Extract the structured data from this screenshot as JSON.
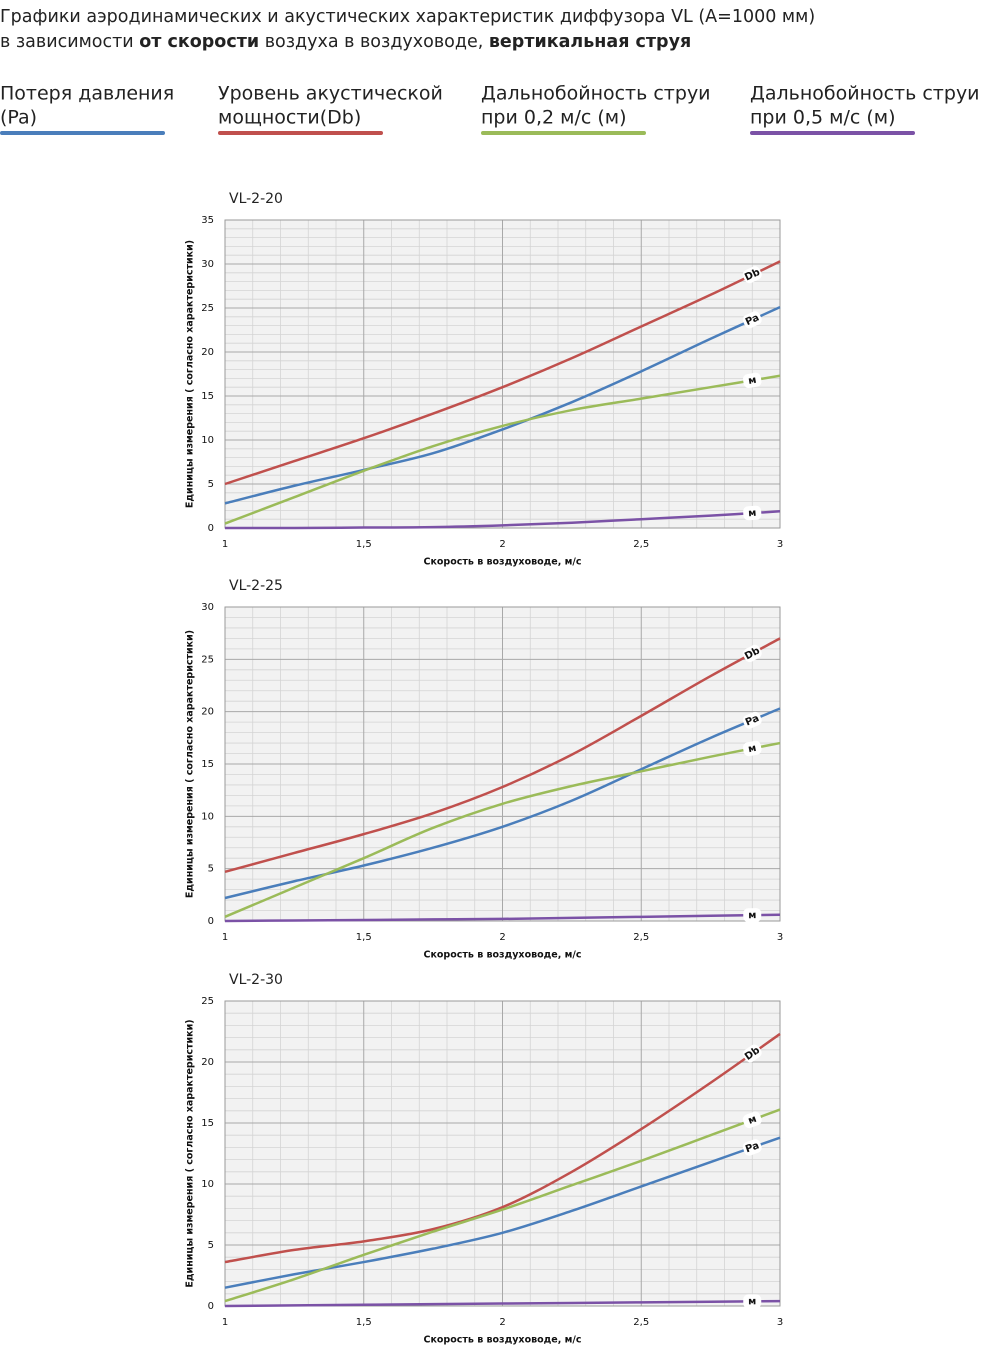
{
  "header": {
    "line1": "Графики аэродинамических и акустических характеристик  диффузора VL (А=1000 мм)",
    "line2": [
      {
        "text": "в зависимости ",
        "bold": false
      },
      {
        "text": "от скорости",
        "bold": true
      },
      {
        "text": " воздуха в воздуховоде, ",
        "bold": false
      },
      {
        "text": "вертикальная струя",
        "bold": true
      }
    ]
  },
  "legend": [
    {
      "lines": [
        "Потеря давления",
        "(Pa)"
      ],
      "color": "#4a7ebb"
    },
    {
      "lines": [
        "Уровень акустической",
        "мощности(Db)"
      ],
      "color": "#c0504d"
    },
    {
      "lines": [
        "Дальнобойность струи",
        "при 0,2 м/с (м)"
      ],
      "color": "#9bbb59"
    },
    {
      "lines": [
        "Дальнобойность струи",
        "при 0,5 м/с (м)"
      ],
      "color": "#7b52a6"
    }
  ],
  "chart_data": [
    {
      "type": "line",
      "title": "VL-2-20",
      "x_label": "Скорость в воздуховоде, м/с",
      "y_label": "Единицы измерения ( согласно характеристики)",
      "x": [
        1,
        1.25,
        1.5,
        1.75,
        2,
        2.25,
        2.5,
        2.75,
        3
      ],
      "xlim": [
        1,
        3
      ],
      "xticks": [
        1,
        {
          "value": 1.5,
          "label": "1,5"
        },
        2,
        {
          "value": 2.5,
          "label": "2,5"
        },
        3
      ],
      "ylim": [
        0,
        35
      ],
      "yticks": [
        0,
        5,
        10,
        15,
        20,
        25,
        30,
        35
      ],
      "grid": true,
      "series": [
        {
          "name": "Db",
          "color": "#c0504d",
          "values": [
            5,
            7.6,
            10.2,
            13,
            16,
            19.3,
            22.9,
            26.5,
            30.3
          ]
        },
        {
          "name": "Pa",
          "color": "#4a7ebb",
          "values": [
            2.8,
            4.8,
            6.6,
            8.5,
            11.2,
            14.3,
            17.8,
            21.5,
            25.1
          ]
        },
        {
          "name": "м",
          "color": "#9bbb59",
          "values": [
            0.5,
            3.5,
            6.5,
            9.3,
            11.6,
            13.4,
            14.7,
            16,
            17.3
          ]
        },
        {
          "name": "м",
          "color": "#7b52a6",
          "values": [
            0,
            0,
            0.05,
            0.1,
            0.3,
            0.6,
            1,
            1.4,
            1.9
          ]
        }
      ]
    },
    {
      "type": "line",
      "title": "VL-2-25",
      "x_label": "Скорость в воздуховоде, м/с",
      "y_label": "Единицы измерения ( согласно характеристики)",
      "x": [
        1,
        1.25,
        1.5,
        1.75,
        2,
        2.25,
        2.5,
        2.75,
        3
      ],
      "xlim": [
        1,
        3
      ],
      "xticks": [
        1,
        {
          "value": 1.5,
          "label": "1,5"
        },
        2,
        {
          "value": 2.5,
          "label": "2,5"
        },
        3
      ],
      "ylim": [
        0,
        30
      ],
      "yticks": [
        0,
        5,
        10,
        15,
        20,
        25,
        30
      ],
      "grid": true,
      "series": [
        {
          "name": "Db",
          "color": "#c0504d",
          "values": [
            4.7,
            6.5,
            8.3,
            10.3,
            12.8,
            15.9,
            19.6,
            23.4,
            27
          ]
        },
        {
          "name": "Pa",
          "color": "#4a7ebb",
          "values": [
            2.2,
            3.8,
            5.3,
            7,
            9,
            11.5,
            14.5,
            17.5,
            20.3
          ]
        },
        {
          "name": "м",
          "color": "#9bbb59",
          "values": [
            0.4,
            3.2,
            6,
            8.9,
            11.2,
            12.9,
            14.3,
            15.7,
            17
          ]
        },
        {
          "name": "м",
          "color": "#7b52a6",
          "values": [
            0,
            0.05,
            0.1,
            0.15,
            0.2,
            0.3,
            0.4,
            0.5,
            0.6
          ]
        }
      ]
    },
    {
      "type": "line",
      "title": "VL-2-30",
      "x_label": "Скорость в воздуховоде, м/с",
      "y_label": "Единицы измерения ( согласно характеристики)",
      "x": [
        1,
        1.25,
        1.5,
        1.75,
        2,
        2.25,
        2.5,
        2.75,
        3
      ],
      "xlim": [
        1,
        3
      ],
      "xticks": [
        1,
        {
          "value": 1.5,
          "label": "1,5"
        },
        2,
        {
          "value": 2.5,
          "label": "2,5"
        },
        3
      ],
      "ylim": [
        0,
        25
      ],
      "yticks": [
        0,
        5,
        10,
        15,
        20,
        25
      ],
      "grid": true,
      "series": [
        {
          "name": "Db",
          "color": "#c0504d",
          "values": [
            3.6,
            4.6,
            5.3,
            6.3,
            8.1,
            11,
            14.5,
            18.3,
            22.3
          ]
        },
        {
          "name": "Pa",
          "color": "#4a7ebb",
          "values": [
            1.5,
            2.6,
            3.6,
            4.7,
            6,
            7.8,
            9.8,
            11.8,
            13.8
          ]
        },
        {
          "name": "м",
          "color": "#9bbb59",
          "values": [
            0.4,
            2.2,
            4.2,
            6.1,
            7.9,
            9.9,
            11.9,
            14,
            16.1
          ]
        },
        {
          "name": "м",
          "color": "#7b52a6",
          "values": [
            0,
            0.05,
            0.1,
            0.15,
            0.2,
            0.25,
            0.3,
            0.35,
            0.4
          ]
        }
      ]
    }
  ]
}
